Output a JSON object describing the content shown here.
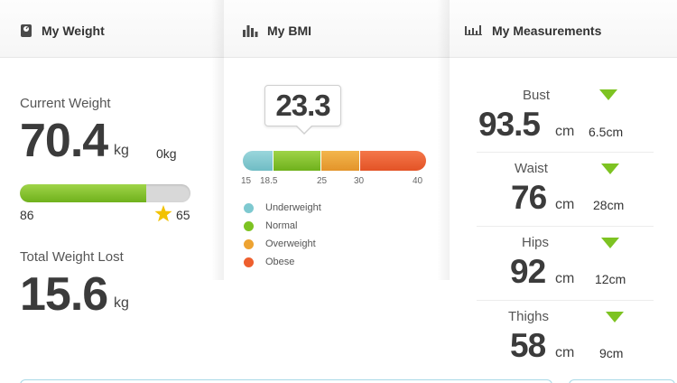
{
  "weight": {
    "title": "My Weight",
    "current_label": "Current Weight",
    "current_value": "70.4",
    "current_unit": "kg",
    "change_value": "0kg",
    "progress_fraction": 0.74,
    "bar_start": "86",
    "bar_goal": "65",
    "lost_label": "Total Weight Lost",
    "lost_value": "15.6",
    "lost_unit": "kg",
    "colors": {
      "progress": "#7cbf24",
      "goal_star": "#f2c200"
    }
  },
  "bmi": {
    "title": "My BMI",
    "value": "23.3",
    "ticks": [
      "15",
      "18.5",
      "25",
      "30",
      "40"
    ],
    "legend": [
      {
        "label": "Underweight",
        "color": "#7ec9d0"
      },
      {
        "label": "Normal",
        "color": "#7dc322"
      },
      {
        "label": "Overweight",
        "color": "#eda332"
      },
      {
        "label": "Obese",
        "color": "#ee5f2e"
      }
    ]
  },
  "measurements": {
    "title": "My Measurements",
    "items": [
      {
        "label": "Bust",
        "value": "93.5",
        "unit": "cm",
        "diff": "6.5cm"
      },
      {
        "label": "Waist",
        "value": "76",
        "unit": "cm",
        "diff": "28cm"
      },
      {
        "label": "Hips",
        "value": "92",
        "unit": "cm",
        "diff": "12cm"
      },
      {
        "label": "Thighs",
        "value": "58",
        "unit": "cm",
        "diff": "9cm"
      }
    ],
    "trend_color": "#7dc322"
  },
  "icons": [
    "scale-icon",
    "bar-chart-icon",
    "measure-bars-icon",
    "star-icon",
    "down-triangle-icon"
  ]
}
